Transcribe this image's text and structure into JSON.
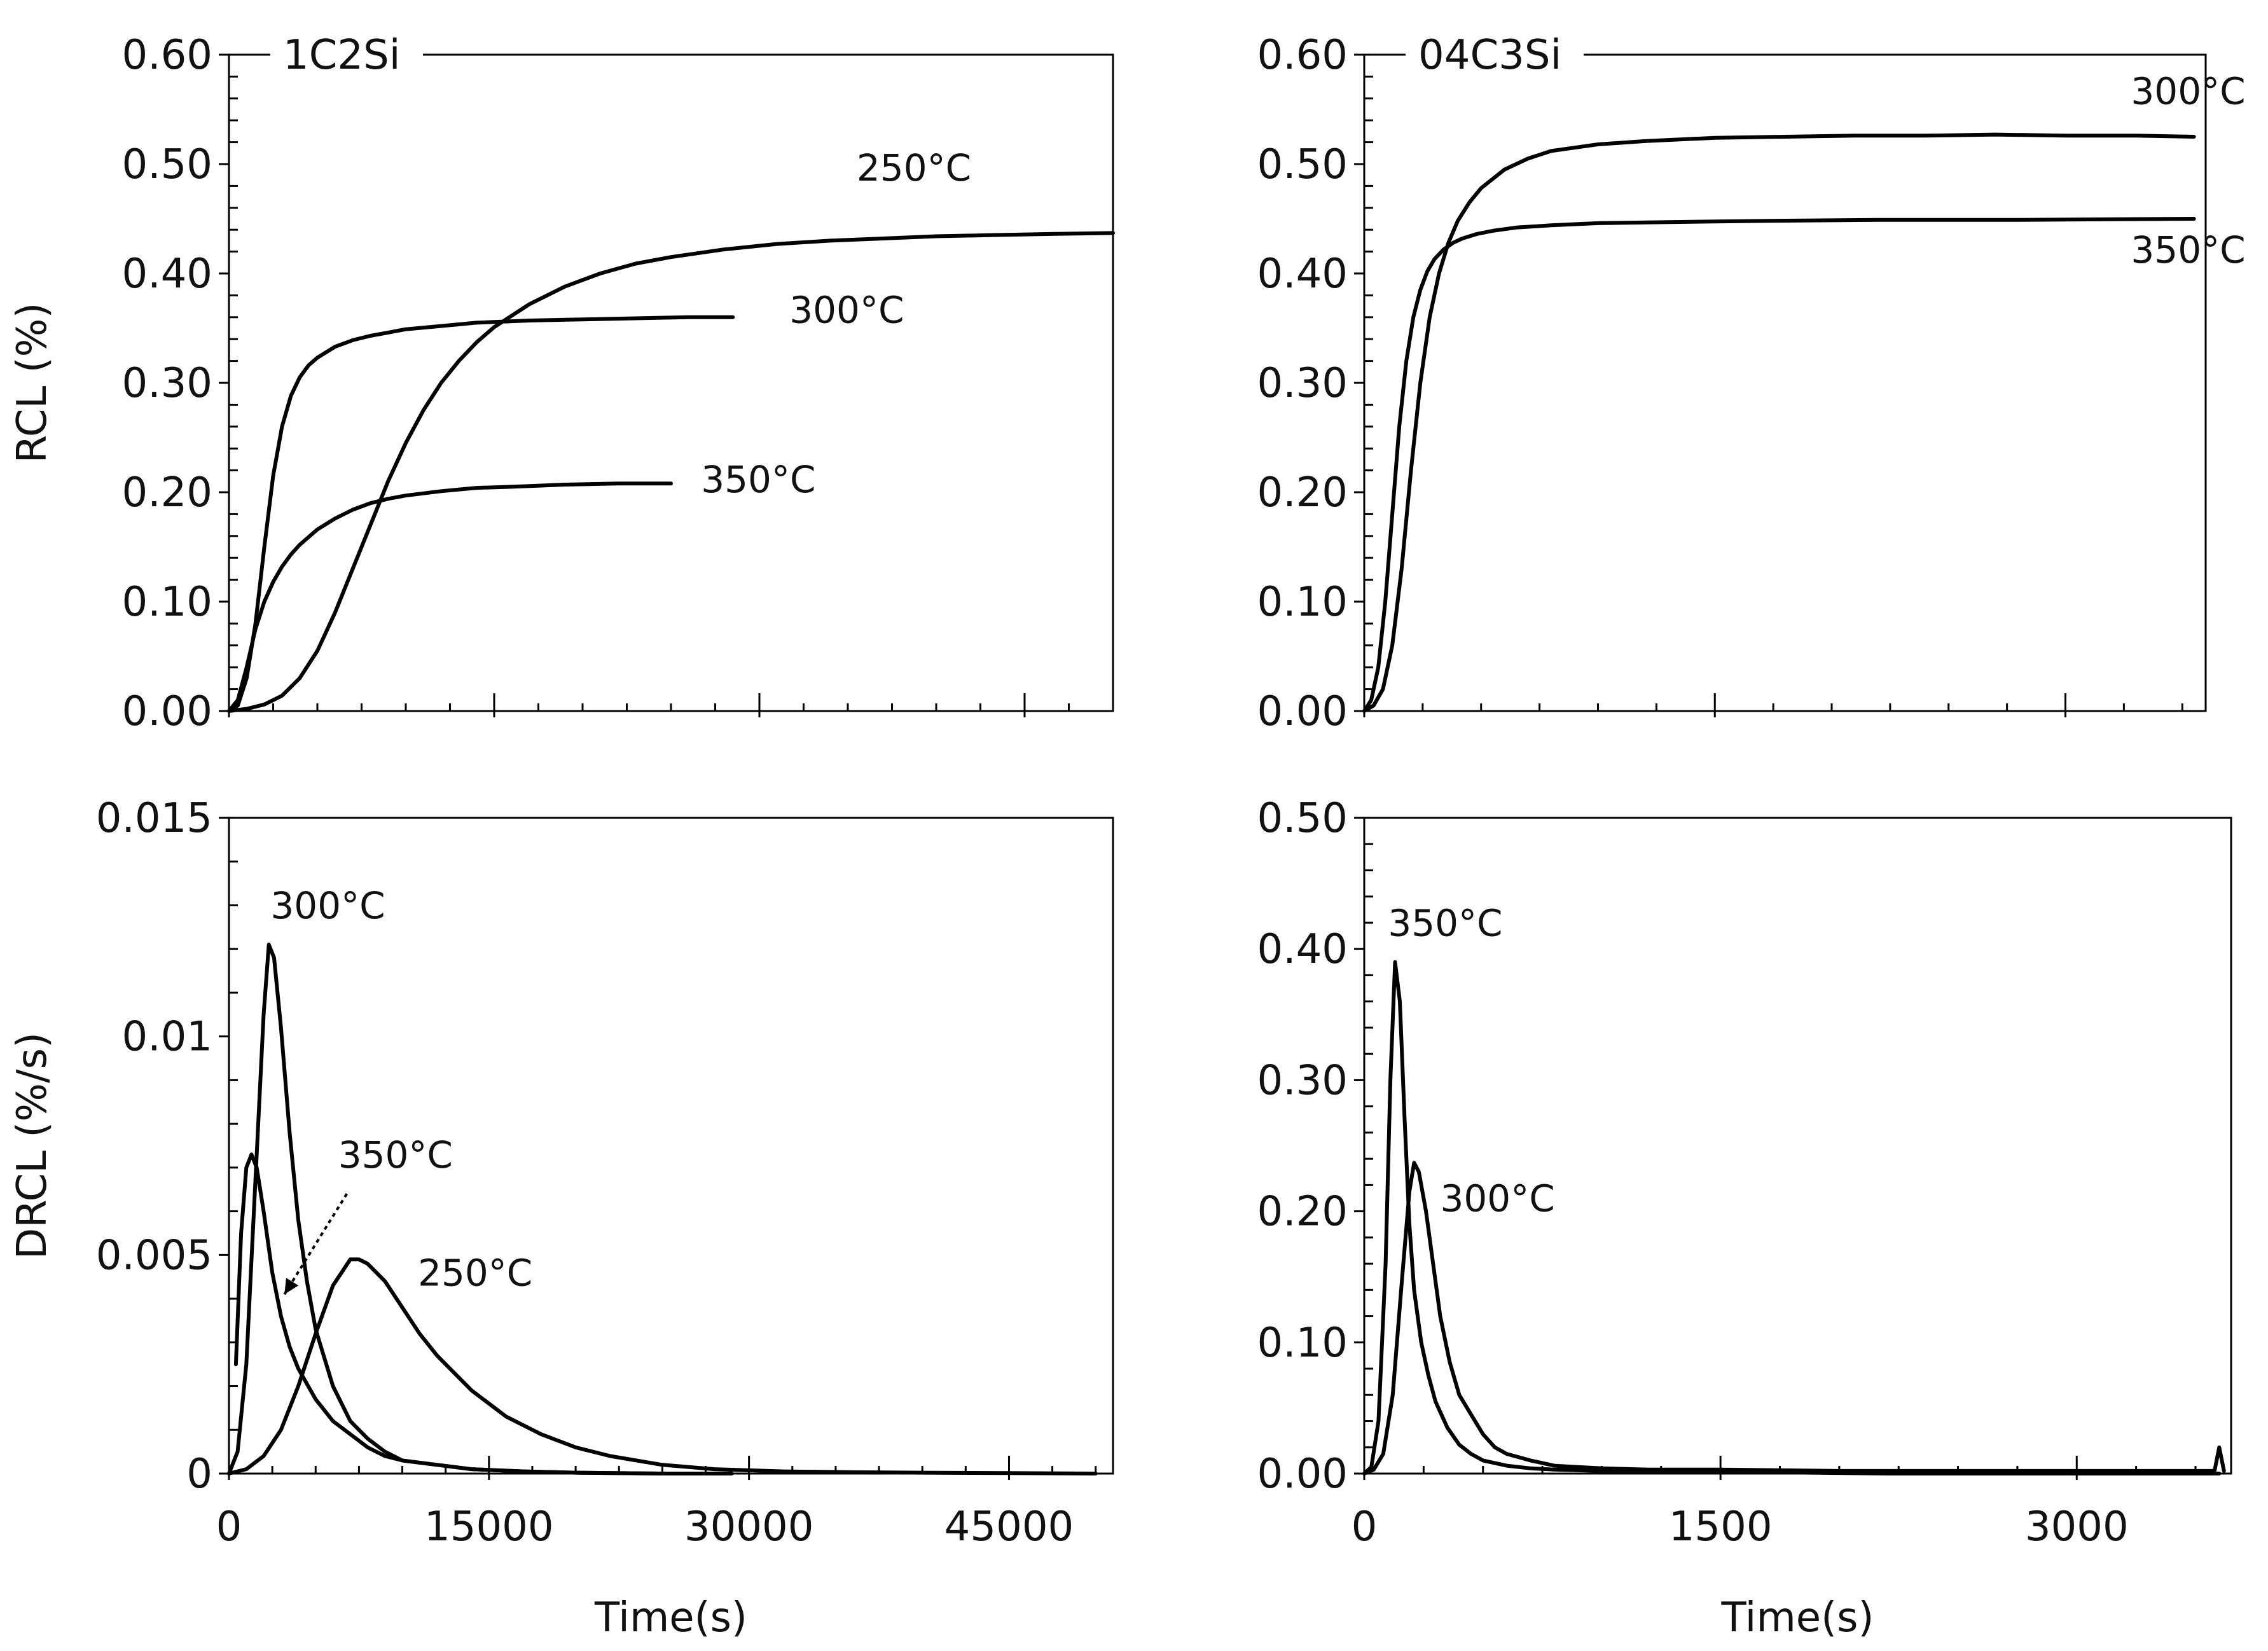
{
  "chart_data": [
    {
      "id": "top-left",
      "type": "line",
      "title": "1C2Si",
      "xlabel": "",
      "ylabel": "RCL (%)",
      "xlim": [
        0,
        50000
      ],
      "ylim": [
        0,
        0.6
      ],
      "xmajor": [
        0,
        15000,
        30000,
        45000
      ],
      "xminor_step": 2500,
      "yticks": [
        0,
        0.1,
        0.2,
        0.3,
        0.4,
        0.5,
        0.6
      ],
      "ytick_labels": [
        "0.00",
        "0.10",
        "0.20",
        "0.30",
        "0.40",
        "0.50",
        "0.60"
      ],
      "yminor_step": 0.02,
      "show_xtick_labels": false,
      "series": [
        {
          "name": "250°C",
          "label": "250°C",
          "x": [
            0,
            1000,
            2000,
            3000,
            4000,
            5000,
            6000,
            7000,
            8000,
            9000,
            10000,
            11000,
            12000,
            13000,
            14000,
            15000,
            17000,
            19000,
            21000,
            23000,
            25000,
            28000,
            31000,
            34000,
            37000,
            40000,
            43000,
            46000,
            50000
          ],
          "y": [
            0,
            0.002,
            0.006,
            0.014,
            0.03,
            0.055,
            0.09,
            0.13,
            0.17,
            0.21,
            0.245,
            0.275,
            0.3,
            0.32,
            0.337,
            0.351,
            0.372,
            0.388,
            0.4,
            0.409,
            0.415,
            0.422,
            0.427,
            0.43,
            0.432,
            0.434,
            0.435,
            0.436,
            0.437
          ]
        },
        {
          "name": "300°C",
          "label": "300°C",
          "x": [
            0,
            500,
            1000,
            1500,
            2000,
            2500,
            3000,
            3500,
            4000,
            4500,
            5000,
            6000,
            7000,
            8000,
            9000,
            10000,
            12000,
            14000,
            17000,
            20000,
            23000,
            26000,
            28500
          ],
          "y": [
            0,
            0.005,
            0.03,
            0.08,
            0.15,
            0.215,
            0.26,
            0.288,
            0.305,
            0.316,
            0.323,
            0.333,
            0.339,
            0.343,
            0.346,
            0.349,
            0.352,
            0.355,
            0.357,
            0.358,
            0.359,
            0.36,
            0.36
          ]
        },
        {
          "name": "350°C",
          "label": "350°C",
          "x": [
            0,
            500,
            1000,
            1500,
            2000,
            2500,
            3000,
            3500,
            4000,
            5000,
            6000,
            7000,
            8000,
            9000,
            10000,
            12000,
            14000,
            16000,
            19000,
            22000,
            25000
          ],
          "y": [
            0,
            0.01,
            0.04,
            0.075,
            0.1,
            0.118,
            0.132,
            0.143,
            0.152,
            0.166,
            0.176,
            0.184,
            0.19,
            0.194,
            0.197,
            0.201,
            0.204,
            0.205,
            0.207,
            0.208,
            0.208
          ]
        }
      ],
      "annotations": [
        {
          "text": "250°C",
          "x": 35500,
          "y": 0.485
        },
        {
          "text": "300°C",
          "x": 31700,
          "y": 0.355
        },
        {
          "text": "350°C",
          "x": 26700,
          "y": 0.2
        }
      ]
    },
    {
      "id": "top-right",
      "type": "line",
      "title": "04C3Si",
      "xlabel": "",
      "ylabel": "",
      "xlim": [
        0,
        3600
      ],
      "ylim": [
        0,
        0.6
      ],
      "xmajor": [
        0,
        1500,
        3000
      ],
      "xminor_step": 250,
      "yticks": [
        0,
        0.1,
        0.2,
        0.3,
        0.4,
        0.5,
        0.6
      ],
      "ytick_labels": [
        "0.00",
        "0.10",
        "0.20",
        "0.30",
        "0.40",
        "0.50",
        "0.60"
      ],
      "yminor_step": 0.02,
      "show_xtick_labels": false,
      "series": [
        {
          "name": "300°C",
          "label": "300°C",
          "x": [
            0,
            40,
            80,
            120,
            160,
            200,
            240,
            280,
            320,
            360,
            400,
            450,
            500,
            600,
            700,
            800,
            900,
            1000,
            1200,
            1500,
            1800,
            2100,
            2400,
            2700,
            3000,
            3300,
            3550
          ],
          "y": [
            0,
            0.005,
            0.02,
            0.06,
            0.13,
            0.22,
            0.3,
            0.36,
            0.4,
            0.428,
            0.448,
            0.465,
            0.478,
            0.495,
            0.505,
            0.512,
            0.515,
            0.518,
            0.521,
            0.524,
            0.525,
            0.526,
            0.526,
            0.527,
            0.526,
            0.526,
            0.525
          ]
        },
        {
          "name": "350°C",
          "label": "350°C",
          "x": [
            0,
            30,
            60,
            90,
            120,
            150,
            180,
            210,
            240,
            270,
            300,
            340,
            380,
            420,
            480,
            550,
            650,
            800,
            1000,
            1300,
            1700,
            2200,
            2800,
            3550
          ],
          "y": [
            0,
            0.01,
            0.04,
            0.1,
            0.18,
            0.26,
            0.32,
            0.36,
            0.385,
            0.402,
            0.413,
            0.422,
            0.428,
            0.432,
            0.436,
            0.439,
            0.442,
            0.444,
            0.446,
            0.447,
            0.448,
            0.449,
            0.449,
            0.45
          ]
        }
      ],
      "annotations": [
        {
          "text": "300°C",
          "x": 3280,
          "y": 0.555
        },
        {
          "text": "350°C",
          "x": 3280,
          "y": 0.41
        }
      ]
    },
    {
      "id": "bottom-left",
      "type": "line",
      "title": "",
      "xlabel": "Time(s)",
      "ylabel": "DRCL (%/s)",
      "xlim": [
        0,
        51000
      ],
      "ylim": [
        0,
        0.015
      ],
      "xmajor": [
        0,
        15000,
        30000,
        45000
      ],
      "xmajor_labels": [
        "0",
        "15000",
        "30000",
        "45000"
      ],
      "xminor_step": 2500,
      "yticks": [
        0,
        0.005,
        0.01,
        0.015
      ],
      "ytick_labels": [
        "0",
        "0.005",
        "0.01",
        "0.015"
      ],
      "yminor_step": 0.001,
      "show_xtick_labels": true,
      "series": [
        {
          "name": "300°C",
          "label": "300°C",
          "x": [
            0,
            500,
            1000,
            1500,
            2000,
            2300,
            2600,
            3000,
            3500,
            4000,
            4500,
            5000,
            6000,
            7000,
            8000,
            9000,
            10000,
            12000,
            14000,
            17000,
            20000,
            25000,
            29000
          ],
          "y": [
            0,
            0.0005,
            0.0025,
            0.0065,
            0.0105,
            0.0121,
            0.0118,
            0.0102,
            0.0078,
            0.0058,
            0.0044,
            0.0033,
            0.002,
            0.0012,
            0.0008,
            0.0005,
            0.0003,
            0.0002,
            0.0001,
            5e-05,
            2e-05,
            0,
            0
          ]
        },
        {
          "name": "350°C",
          "label": "350°C",
          "x": [
            400,
            700,
            1000,
            1300,
            1600,
            2000,
            2500,
            3000,
            3500,
            4000,
            5000,
            6000,
            7000,
            8000,
            9000,
            10000,
            12000,
            14000,
            17000,
            20000,
            25000
          ],
          "y": [
            0.0025,
            0.0055,
            0.007,
            0.0073,
            0.007,
            0.006,
            0.0046,
            0.0036,
            0.0029,
            0.0024,
            0.0017,
            0.0012,
            0.0009,
            0.0006,
            0.0004,
            0.0003,
            0.0002,
            0.0001,
            5e-05,
            2e-05,
            0
          ]
        },
        {
          "name": "250°C",
          "label": "250°C",
          "x": [
            0,
            1000,
            2000,
            3000,
            4000,
            5000,
            6000,
            7000,
            7500,
            8000,
            9000,
            10000,
            11000,
            12000,
            14000,
            16000,
            18000,
            20000,
            22000,
            25000,
            28000,
            32000,
            36000,
            40000,
            45000,
            50000
          ],
          "y": [
            0,
            0.0001,
            0.0004,
            0.001,
            0.002,
            0.0032,
            0.0043,
            0.0049,
            0.0049,
            0.0048,
            0.0044,
            0.0038,
            0.0032,
            0.0027,
            0.0019,
            0.0013,
            0.0009,
            0.0006,
            0.0004,
            0.0002,
            0.0001,
            5e-05,
            3e-05,
            2e-05,
            1e-05,
            0
          ]
        }
      ],
      "annotations": [
        {
          "text": "300°C",
          "x": 2400,
          "y": 0.0127
        },
        {
          "text": "350°C",
          "x": 6300,
          "y": 0.007
        },
        {
          "text": "250°C",
          "x": 10900,
          "y": 0.0043
        }
      ],
      "arrow": {
        "from": [
          6800,
          0.0064
        ],
        "to": [
          3200,
          0.0041
        ]
      }
    },
    {
      "id": "bottom-right",
      "type": "line",
      "title": "",
      "xlabel": "Time(s)",
      "ylabel": "",
      "xlim": [
        0,
        3650
      ],
      "ylim": [
        0,
        0.5
      ],
      "xmajor": [
        0,
        1500,
        3000
      ],
      "xmajor_labels": [
        "0",
        "1500",
        "3000"
      ],
      "xminor_step": 250,
      "yticks": [
        0,
        0.1,
        0.2,
        0.3,
        0.4,
        0.5
      ],
      "ytick_labels": [
        "0.00",
        "0.10",
        "0.20",
        "0.30",
        "0.40",
        "0.50"
      ],
      "yminor_step": 0.02,
      "show_xtick_labels": true,
      "series": [
        {
          "name": "350°C",
          "label": "350°C",
          "x": [
            0,
            30,
            60,
            90,
            110,
            130,
            150,
            170,
            190,
            210,
            240,
            270,
            300,
            350,
            400,
            450,
            500,
            600,
            700,
            800,
            1000,
            1300,
            1700,
            2200,
            3000,
            3600
          ],
          "y": [
            0,
            0.005,
            0.04,
            0.16,
            0.3,
            0.39,
            0.36,
            0.27,
            0.19,
            0.14,
            0.1,
            0.075,
            0.055,
            0.035,
            0.022,
            0.015,
            0.01,
            0.006,
            0.004,
            0.003,
            0.002,
            0.001,
            0.001,
            0,
            0,
            0
          ]
        },
        {
          "name": "300°C",
          "label": "300°C",
          "x": [
            0,
            40,
            80,
            120,
            160,
            190,
            210,
            230,
            260,
            290,
            320,
            360,
            400,
            450,
            500,
            550,
            600,
            700,
            800,
            900,
            1000,
            1200,
            1500,
            2000,
            2500,
            3000,
            3500,
            3580,
            3600,
            3620
          ],
          "y": [
            0,
            0.003,
            0.015,
            0.06,
            0.15,
            0.215,
            0.237,
            0.23,
            0.2,
            0.16,
            0.12,
            0.085,
            0.06,
            0.045,
            0.03,
            0.02,
            0.015,
            0.01,
            0.006,
            0.005,
            0.004,
            0.003,
            0.003,
            0.002,
            0.002,
            0.002,
            0.002,
            0.002,
            0.02,
            0.002
          ]
        }
      ],
      "annotations": [
        {
          "text": "350°C",
          "x": 100,
          "y": 0.41
        },
        {
          "text": "300°C",
          "x": 320,
          "y": 0.2
        }
      ]
    }
  ]
}
